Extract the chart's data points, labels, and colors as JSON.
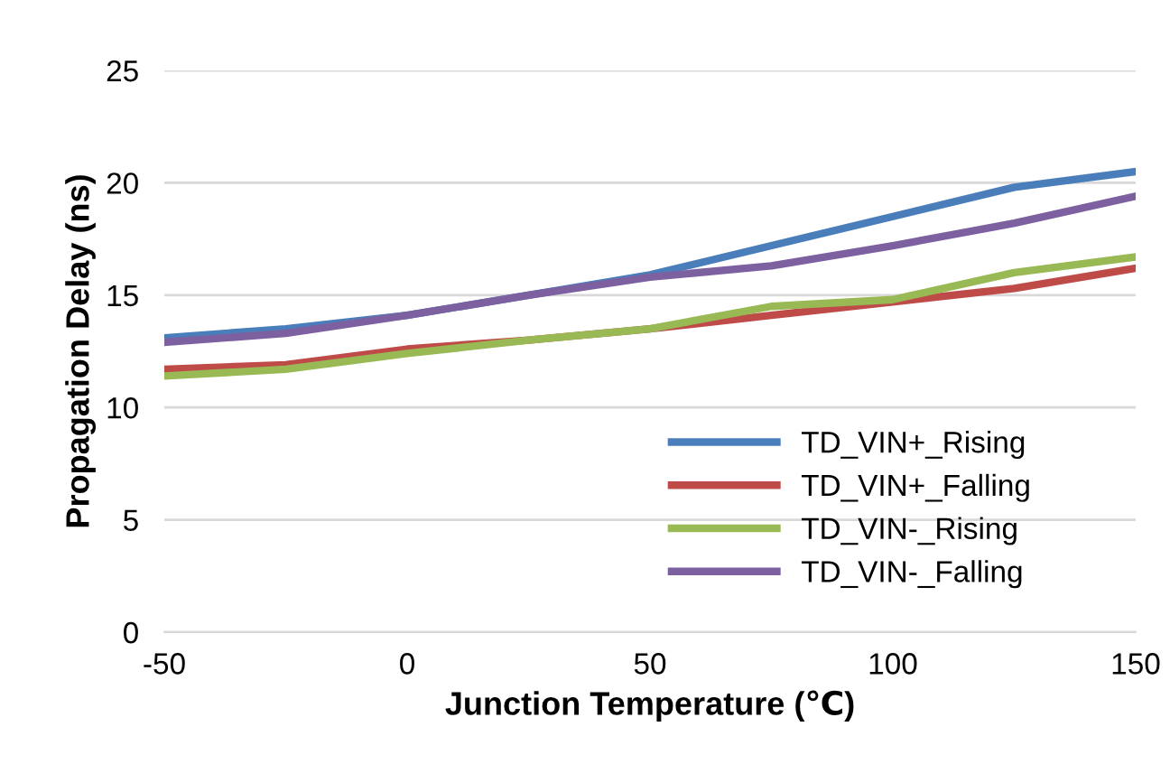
{
  "chart_data": {
    "type": "line",
    "xlabel": "Junction Temperature (℃)",
    "ylabel": "Propagation Delay (ns)",
    "x": [
      -50,
      -25,
      0,
      25,
      50,
      75,
      100,
      125,
      150
    ],
    "xlim": [
      -50,
      150
    ],
    "xticks": [
      -50,
      0,
      50,
      100,
      150
    ],
    "ylim": [
      0,
      25
    ],
    "yticks": [
      0,
      5,
      10,
      15,
      20,
      25
    ],
    "grid": "y",
    "legend": "bottom right",
    "marker": "none",
    "line_style": "solid",
    "series": [
      {
        "name": "TD_VIN+_Rising",
        "color": "#4a7ebb",
        "values": [
          13.1,
          13.5,
          14.1,
          15.0,
          15.9,
          17.2,
          18.5,
          19.8,
          20.5
        ]
      },
      {
        "name": "TD_VIN+_Falling",
        "color": "#be4b48",
        "values": [
          11.7,
          11.9,
          12.6,
          13.0,
          13.5,
          14.1,
          14.7,
          15.3,
          16.2
        ]
      },
      {
        "name": "TD_VIN-_Rising",
        "color": "#98b954",
        "values": [
          11.4,
          11.7,
          12.4,
          13.0,
          13.5,
          14.5,
          14.8,
          16.0,
          16.7
        ]
      },
      {
        "name": "TD_VIN-_Falling",
        "color": "#7d60a0",
        "values": [
          12.9,
          13.3,
          14.1,
          15.0,
          15.8,
          16.3,
          17.2,
          18.2,
          19.4
        ]
      }
    ]
  }
}
